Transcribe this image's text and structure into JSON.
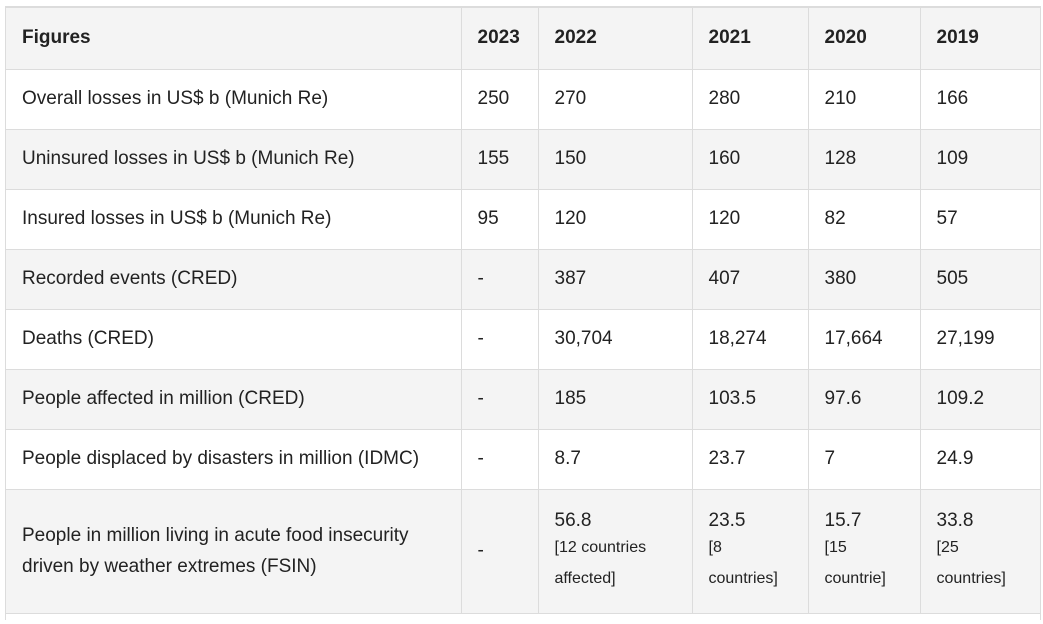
{
  "header": {
    "label": "Figures",
    "years": [
      "2023",
      "2022",
      "2021",
      "2020",
      "2019"
    ]
  },
  "rows": [
    {
      "label": "Overall losses in US$ b (Munich Re)",
      "values": [
        "250",
        "270",
        "280",
        "210",
        "166"
      ]
    },
    {
      "label": "Uninsured losses in US$ b (Munich Re)",
      "values": [
        "155",
        "150",
        "160",
        "128",
        "109"
      ]
    },
    {
      "label": "Insured losses in US$ b (Munich Re)",
      "values": [
        "95",
        "120",
        "120",
        "82",
        "57"
      ]
    },
    {
      "label": "Recorded events (CRED)",
      "values": [
        "-",
        "387",
        "407",
        "380",
        "505"
      ]
    },
    {
      "label": "Deaths (CRED)",
      "values": [
        "-",
        "30,704",
        "18,274",
        "17,664",
        "27,199"
      ]
    },
    {
      "label": "People affected in million (CRED)",
      "values": [
        "-",
        "185",
        "103.5",
        "97.6",
        "109.2"
      ]
    },
    {
      "label": "People displaced by disasters in million (IDMC)",
      "values": [
        "-",
        "8.7",
        "23.7",
        "7",
        "24.9"
      ]
    }
  ],
  "food_row": {
    "label_line1": "People in million living in acute food insecurity",
    "label_line2": "driven by weather extremes (FSIN)",
    "v2023": "-",
    "v2022": {
      "value": "56.8",
      "note_line1": "[12 countries",
      "note_line2": "affected]"
    },
    "v2021": {
      "value": "23.5",
      "note_line1": "[8",
      "note_line2": "countries]"
    },
    "v2020": {
      "value": "15.7",
      "note_line1": "[15",
      "note_line2": "countrie]"
    },
    "v2019": {
      "value": "33.8",
      "note_line1": "[25",
      "note_line2": "countries]"
    }
  }
}
